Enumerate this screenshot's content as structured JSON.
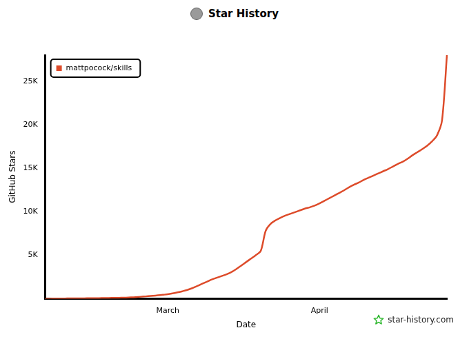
{
  "chart_data": {
    "type": "line",
    "title": "Star History",
    "x_label": "Date",
    "y_label": "GitHub Stars",
    "categories": [
      null,
      null,
      null,
      null,
      null,
      null,
      null,
      null,
      null,
      null,
      null,
      null,
      null,
      null,
      null,
      null,
      null,
      null,
      null,
      null,
      null,
      null,
      null,
      null,
      null,
      "March",
      null,
      null,
      null,
      null,
      null,
      null,
      null,
      null,
      null,
      null,
      null,
      null,
      null,
      null,
      null,
      null,
      null,
      null,
      null,
      null,
      null,
      null,
      null,
      null,
      null,
      null,
      null,
      null,
      null,
      null,
      "April",
      null,
      null,
      null,
      null,
      null,
      null,
      null,
      null,
      null,
      null,
      null,
      null,
      null,
      null,
      null,
      null,
      null,
      null,
      null,
      null,
      null,
      null,
      null,
      null,
      null,
      null
    ],
    "series": [
      {
        "name": "mattpocock/skills",
        "color": "#dd4b2a",
        "values": [
          0,
          0,
          10,
          20,
          20,
          30,
          30,
          40,
          40,
          50,
          60,
          60,
          70,
          80,
          90,
          100,
          110,
          130,
          160,
          200,
          240,
          280,
          330,
          380,
          440,
          500,
          600,
          720,
          850,
          1000,
          1200,
          1450,
          1700,
          1950,
          2200,
          2400,
          2600,
          2800,
          3050,
          3400,
          3800,
          4200,
          4600,
          5000,
          5500,
          7800,
          8600,
          9000,
          9300,
          9550,
          9750,
          9950,
          10150,
          10350,
          10500,
          10700,
          10950,
          11250,
          11550,
          11850,
          12150,
          12450,
          12800,
          13100,
          13350,
          13650,
          13900,
          14150,
          14400,
          14650,
          14900,
          15200,
          15500,
          15750,
          16100,
          16500,
          16850,
          17200,
          17600,
          18100,
          18800,
          20500,
          28000
        ]
      }
    ],
    "ylim": [
      0,
      28000
    ],
    "yticks": [
      {
        "value": 5000,
        "label": "5K"
      },
      {
        "value": 10000,
        "label": "10K"
      },
      {
        "value": 15000,
        "label": "15K"
      },
      {
        "value": 20000,
        "label": "20K"
      },
      {
        "value": 25000,
        "label": "25K"
      }
    ],
    "grid": false,
    "legend": "upper left",
    "annotations": [
      "star-history.com"
    ]
  }
}
